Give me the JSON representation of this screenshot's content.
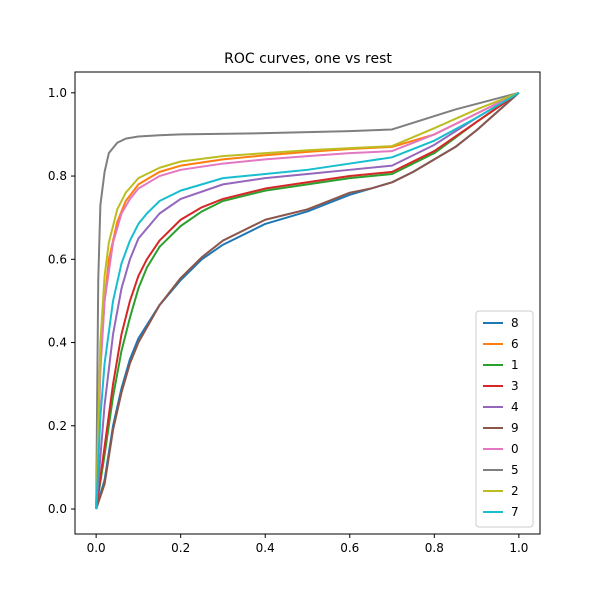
{
  "chart_data": {
    "type": "line",
    "title": "ROC curves, one vs rest",
    "xlabel": "",
    "ylabel": "",
    "xlim": [
      -0.05,
      1.05
    ],
    "ylim": [
      -0.06,
      1.05
    ],
    "xticks": [
      "0.0",
      "0.2",
      "0.4",
      "0.6",
      "0.8",
      "1.0"
    ],
    "yticks": [
      "0.0",
      "0.2",
      "0.4",
      "0.6",
      "0.8",
      "1.0"
    ],
    "grid": false,
    "legend_position": "lower-right",
    "series": [
      {
        "name": "8",
        "color": "#1f77b4",
        "x": [
          0,
          0.02,
          0.04,
          0.06,
          0.08,
          0.1,
          0.15,
          0.2,
          0.25,
          0.3,
          0.4,
          0.5,
          0.55,
          0.6,
          0.65,
          0.7,
          0.75,
          0.8,
          0.85,
          0.9,
          0.95,
          1.0
        ],
        "y": [
          0,
          0.07,
          0.2,
          0.29,
          0.36,
          0.41,
          0.49,
          0.55,
          0.6,
          0.635,
          0.685,
          0.715,
          0.735,
          0.755,
          0.77,
          0.785,
          0.81,
          0.84,
          0.87,
          0.91,
          0.955,
          1.0
        ]
      },
      {
        "name": "6",
        "color": "#ff7f0e",
        "x": [
          0,
          0.01,
          0.02,
          0.03,
          0.05,
          0.07,
          0.1,
          0.15,
          0.2,
          0.3,
          0.4,
          0.5,
          0.6,
          0.7,
          0.8,
          0.9,
          1.0
        ],
        "y": [
          0,
          0.35,
          0.5,
          0.6,
          0.69,
          0.74,
          0.78,
          0.81,
          0.825,
          0.84,
          0.85,
          0.858,
          0.865,
          0.87,
          0.9,
          0.95,
          1.0
        ]
      },
      {
        "name": "1",
        "color": "#2ca02c",
        "x": [
          0,
          0.02,
          0.04,
          0.06,
          0.08,
          0.1,
          0.12,
          0.15,
          0.2,
          0.25,
          0.3,
          0.4,
          0.5,
          0.6,
          0.7,
          0.8,
          0.9,
          1.0
        ],
        "y": [
          0,
          0.13,
          0.27,
          0.38,
          0.46,
          0.53,
          0.58,
          0.63,
          0.68,
          0.715,
          0.74,
          0.765,
          0.78,
          0.795,
          0.805,
          0.855,
          0.93,
          1.0
        ]
      },
      {
        "name": "3",
        "color": "#d62728",
        "x": [
          0,
          0.02,
          0.04,
          0.06,
          0.08,
          0.1,
          0.12,
          0.15,
          0.2,
          0.25,
          0.3,
          0.4,
          0.5,
          0.6,
          0.7,
          0.8,
          0.9,
          1.0
        ],
        "y": [
          0,
          0.15,
          0.3,
          0.42,
          0.5,
          0.56,
          0.6,
          0.645,
          0.695,
          0.725,
          0.745,
          0.77,
          0.785,
          0.8,
          0.81,
          0.86,
          0.93,
          1.0
        ]
      },
      {
        "name": "4",
        "color": "#9467bd",
        "x": [
          0,
          0.02,
          0.04,
          0.06,
          0.08,
          0.1,
          0.15,
          0.2,
          0.3,
          0.4,
          0.5,
          0.6,
          0.7,
          0.8,
          0.9,
          1.0
        ],
        "y": [
          0,
          0.25,
          0.42,
          0.53,
          0.6,
          0.65,
          0.71,
          0.745,
          0.78,
          0.795,
          0.805,
          0.815,
          0.825,
          0.875,
          0.94,
          1.0
        ]
      },
      {
        "name": "9",
        "color": "#8c564b",
        "x": [
          0,
          0.02,
          0.04,
          0.06,
          0.08,
          0.1,
          0.15,
          0.2,
          0.25,
          0.3,
          0.4,
          0.5,
          0.55,
          0.6,
          0.65,
          0.7,
          0.75,
          0.8,
          0.85,
          0.9,
          0.95,
          1.0
        ],
        "y": [
          0,
          0.06,
          0.19,
          0.28,
          0.35,
          0.4,
          0.49,
          0.555,
          0.605,
          0.645,
          0.695,
          0.72,
          0.74,
          0.76,
          0.77,
          0.785,
          0.81,
          0.84,
          0.87,
          0.91,
          0.955,
          1.0
        ]
      },
      {
        "name": "0",
        "color": "#e377c2",
        "x": [
          0,
          0.01,
          0.02,
          0.04,
          0.06,
          0.08,
          0.1,
          0.15,
          0.2,
          0.3,
          0.4,
          0.5,
          0.6,
          0.7,
          0.8,
          0.9,
          1.0
        ],
        "y": [
          0,
          0.33,
          0.5,
          0.64,
          0.71,
          0.745,
          0.77,
          0.8,
          0.815,
          0.83,
          0.84,
          0.848,
          0.855,
          0.86,
          0.9,
          0.95,
          1.0
        ]
      },
      {
        "name": "5",
        "color": "#7f7f7f",
        "x": [
          0,
          0.005,
          0.01,
          0.02,
          0.03,
          0.05,
          0.07,
          0.1,
          0.15,
          0.2,
          0.4,
          0.6,
          0.7,
          0.85,
          1.0
        ],
        "y": [
          0,
          0.55,
          0.73,
          0.81,
          0.855,
          0.88,
          0.89,
          0.895,
          0.898,
          0.9,
          0.903,
          0.908,
          0.912,
          0.96,
          1.0
        ]
      },
      {
        "name": "2",
        "color": "#bcbd22",
        "x": [
          0,
          0.01,
          0.02,
          0.03,
          0.05,
          0.07,
          0.1,
          0.15,
          0.2,
          0.3,
          0.4,
          0.5,
          0.6,
          0.7,
          0.8,
          0.9,
          1.0
        ],
        "y": [
          0,
          0.4,
          0.56,
          0.64,
          0.72,
          0.76,
          0.795,
          0.82,
          0.835,
          0.848,
          0.855,
          0.862,
          0.867,
          0.872,
          0.915,
          0.96,
          1.0
        ]
      },
      {
        "name": "7",
        "color": "#17becf",
        "x": [
          0,
          0.01,
          0.02,
          0.04,
          0.06,
          0.08,
          0.1,
          0.12,
          0.15,
          0.2,
          0.3,
          0.4,
          0.5,
          0.6,
          0.7,
          0.8,
          0.9,
          1.0
        ],
        "y": [
          0,
          0.22,
          0.35,
          0.5,
          0.59,
          0.645,
          0.685,
          0.71,
          0.74,
          0.765,
          0.795,
          0.805,
          0.815,
          0.83,
          0.845,
          0.885,
          0.94,
          1.0
        ]
      }
    ]
  }
}
